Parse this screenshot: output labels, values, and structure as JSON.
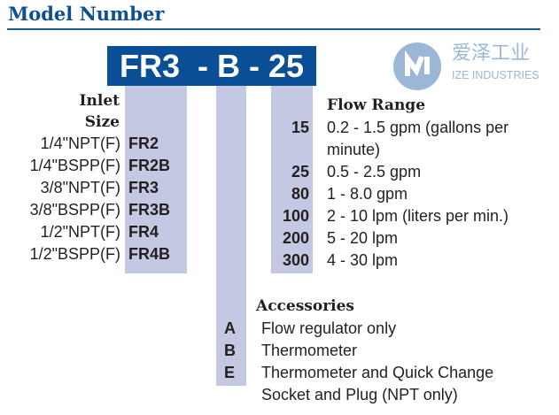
{
  "title": "Model Number",
  "model_code": "FR3  - B - 25",
  "logo": {
    "cn": "爱泽工业",
    "en": "IZE INDUSTRIES",
    "color": "#9cb7d6"
  },
  "inlet": {
    "heading1": "Inlet",
    "heading2": "Size",
    "rows": [
      {
        "size": "1/4\"NPT(F)",
        "code": "FR2"
      },
      {
        "size": "1/4\"BSPP(F)",
        "code": "FR2B"
      },
      {
        "size": "3/8\"NPT(F)",
        "code": "FR3"
      },
      {
        "size": "3/8\"BSPP(F)",
        "code": "FR3B"
      },
      {
        "size": "1/2\"NPT(F)",
        "code": "FR4"
      },
      {
        "size": "1/2\"BSPP(F)",
        "code": "FR4B"
      }
    ]
  },
  "flow": {
    "heading": "Flow Range",
    "rows": [
      {
        "code": "15",
        "desc": "0.2 - 1.5 gpm (gallons per",
        "desc2": "minute)"
      },
      {
        "code": "25",
        "desc": "0.5 - 2.5 gpm"
      },
      {
        "code": "80",
        "desc": "1 - 8.0 gpm"
      },
      {
        "code": "100",
        "desc": "2 - 10 lpm (liters per min.)"
      },
      {
        "code": "200",
        "desc": "5 - 20 lpm"
      },
      {
        "code": "300",
        "desc": "4 - 30 lpm"
      }
    ]
  },
  "accessories": {
    "heading": "Accessories",
    "rows": [
      {
        "code": "A",
        "desc": "Flow regulator only"
      },
      {
        "code": "B",
        "desc": "Thermometer"
      },
      {
        "code": "E",
        "desc": "Thermometer and Quick Change",
        "desc2": "Socket and Plug (NPT only)"
      }
    ]
  },
  "colors": {
    "brand": "#0a4f96",
    "column": "#c4c8e2"
  }
}
